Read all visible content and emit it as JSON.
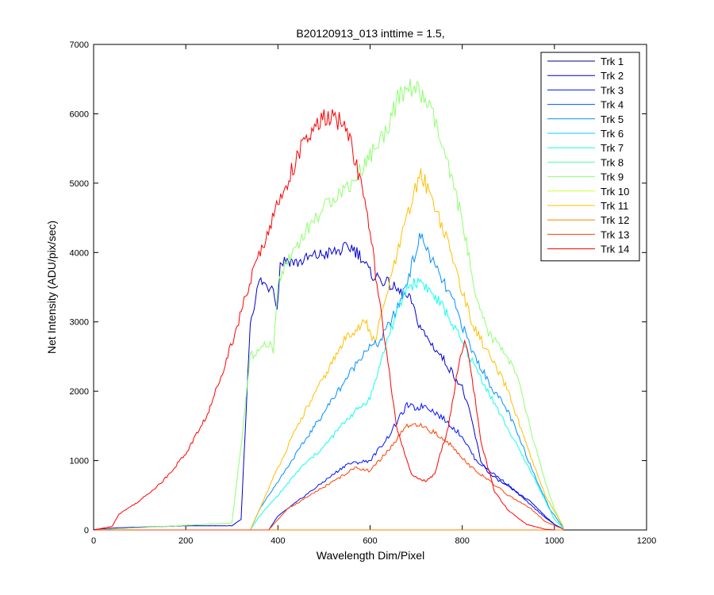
{
  "chart_data": {
    "type": "line",
    "title": "B20120913_013 inttime = 1.5,",
    "xlabel": "Wavelength Dim/Pixel",
    "ylabel": "Net Intensity (ADU/pix/sec)",
    "xlim": [
      0,
      1200
    ],
    "ylim": [
      0,
      7000
    ],
    "xticks": [
      0,
      200,
      400,
      600,
      800,
      1000,
      1200
    ],
    "yticks": [
      0,
      1000,
      2000,
      3000,
      4000,
      5000,
      6000,
      7000
    ],
    "grid": false,
    "legend_position": "top-right",
    "series": [
      {
        "name": "Trk 1",
        "color": "#00008f",
        "points": [
          [
            0,
            0
          ],
          [
            1020,
            0
          ]
        ]
      },
      {
        "name": "Trk 2",
        "color": "#0000cf",
        "points": [
          [
            0,
            5
          ],
          [
            50,
            30
          ],
          [
            100,
            40
          ],
          [
            200,
            60
          ],
          [
            300,
            60
          ],
          [
            320,
            150
          ],
          [
            340,
            3000
          ],
          [
            360,
            3600
          ],
          [
            380,
            3500
          ],
          [
            390,
            3550
          ],
          [
            398,
            3150
          ],
          [
            405,
            3850
          ],
          [
            420,
            3900
          ],
          [
            440,
            3850
          ],
          [
            480,
            3950
          ],
          [
            520,
            4000
          ],
          [
            560,
            4080
          ],
          [
            580,
            3950
          ],
          [
            600,
            3700
          ],
          [
            640,
            3550
          ],
          [
            670,
            3400
          ],
          [
            690,
            3300
          ],
          [
            700,
            3050
          ],
          [
            720,
            2800
          ],
          [
            760,
            2450
          ],
          [
            800,
            2050
          ],
          [
            820,
            1600
          ],
          [
            840,
            1000
          ],
          [
            860,
            800
          ],
          [
            900,
            620
          ],
          [
            950,
            400
          ],
          [
            980,
            200
          ],
          [
            1000,
            80
          ],
          [
            1020,
            10
          ]
        ]
      },
      {
        "name": "Trk 3",
        "color": "#0010ff",
        "points": [
          [
            0,
            0
          ],
          [
            380,
            0
          ],
          [
            400,
            200
          ],
          [
            450,
            450
          ],
          [
            500,
            700
          ],
          [
            550,
            950
          ],
          [
            600,
            1000
          ],
          [
            640,
            1350
          ],
          [
            680,
            1800
          ],
          [
            700,
            1750
          ],
          [
            720,
            1800
          ],
          [
            760,
            1600
          ],
          [
            800,
            1350
          ],
          [
            830,
            1000
          ],
          [
            850,
            900
          ],
          [
            900,
            650
          ],
          [
            950,
            350
          ],
          [
            980,
            180
          ],
          [
            1000,
            80
          ],
          [
            1020,
            10
          ]
        ]
      },
      {
        "name": "Trk 4",
        "color": "#0050ff",
        "points": [
          [
            0,
            0
          ],
          [
            1020,
            0
          ]
        ]
      },
      {
        "name": "Trk 5",
        "color": "#0090ff",
        "points": [
          [
            0,
            0
          ],
          [
            340,
            0
          ],
          [
            360,
            300
          ],
          [
            400,
            700
          ],
          [
            450,
            1200
          ],
          [
            500,
            1700
          ],
          [
            550,
            2200
          ],
          [
            590,
            2600
          ],
          [
            620,
            2700
          ],
          [
            660,
            3200
          ],
          [
            690,
            3800
          ],
          [
            710,
            4250
          ],
          [
            740,
            3800
          ],
          [
            780,
            3300
          ],
          [
            820,
            2600
          ],
          [
            860,
            2100
          ],
          [
            900,
            1700
          ],
          [
            950,
            900
          ],
          [
            990,
            300
          ],
          [
            1020,
            30
          ]
        ]
      },
      {
        "name": "Trk 6",
        "color": "#00d0ff",
        "points": [
          [
            0,
            0
          ],
          [
            1020,
            0
          ]
        ]
      },
      {
        "name": "Trk 7",
        "color": "#10ffef",
        "points": [
          [
            0,
            0
          ],
          [
            340,
            0
          ],
          [
            360,
            200
          ],
          [
            400,
            500
          ],
          [
            450,
            900
          ],
          [
            500,
            1200
          ],
          [
            550,
            1600
          ],
          [
            600,
            1900
          ],
          [
            640,
            2800
          ],
          [
            680,
            3500
          ],
          [
            710,
            3600
          ],
          [
            760,
            3200
          ],
          [
            800,
            2700
          ],
          [
            840,
            2200
          ],
          [
            880,
            1700
          ],
          [
            920,
            1200
          ],
          [
            960,
            700
          ],
          [
            1000,
            150
          ],
          [
            1020,
            20
          ]
        ]
      },
      {
        "name": "Trk 8",
        "color": "#50ffaf",
        "points": [
          [
            0,
            0
          ],
          [
            1020,
            0
          ]
        ]
      },
      {
        "name": "Trk 9",
        "color": "#8fff6f",
        "points": [
          [
            0,
            0
          ],
          [
            300,
            100
          ],
          [
            320,
            1200
          ],
          [
            340,
            2500
          ],
          [
            380,
            2700
          ],
          [
            390,
            2550
          ],
          [
            400,
            3600
          ],
          [
            430,
            4000
          ],
          [
            470,
            4400
          ],
          [
            520,
            4800
          ],
          [
            560,
            5000
          ],
          [
            580,
            5200
          ],
          [
            600,
            5400
          ],
          [
            630,
            5700
          ],
          [
            660,
            6200
          ],
          [
            690,
            6400
          ],
          [
            720,
            6200
          ],
          [
            740,
            5900
          ],
          [
            770,
            5200
          ],
          [
            800,
            4500
          ],
          [
            830,
            3300
          ],
          [
            860,
            2800
          ],
          [
            890,
            2600
          ],
          [
            920,
            2200
          ],
          [
            950,
            1400
          ],
          [
            980,
            700
          ],
          [
            1000,
            300
          ],
          [
            1020,
            30
          ]
        ]
      },
      {
        "name": "Trk 10",
        "color": "#cfff2f",
        "points": [
          [
            0,
            0
          ],
          [
            1020,
            0
          ]
        ]
      },
      {
        "name": "Trk 11",
        "color": "#ffbf00",
        "points": [
          [
            0,
            0
          ],
          [
            340,
            0
          ],
          [
            360,
            300
          ],
          [
            400,
            900
          ],
          [
            450,
            1600
          ],
          [
            500,
            2200
          ],
          [
            550,
            2800
          ],
          [
            590,
            3000
          ],
          [
            610,
            2700
          ],
          [
            640,
            3500
          ],
          [
            680,
            4500
          ],
          [
            710,
            5150
          ],
          [
            740,
            4700
          ],
          [
            780,
            3900
          ],
          [
            820,
            3000
          ],
          [
            860,
            2500
          ],
          [
            900,
            2000
          ],
          [
            940,
            1200
          ],
          [
            980,
            500
          ],
          [
            1020,
            40
          ]
        ]
      },
      {
        "name": "Trk 12",
        "color": "#ff8000",
        "points": [
          [
            0,
            0
          ],
          [
            1020,
            0
          ]
        ]
      },
      {
        "name": "Trk 13",
        "color": "#ff4000",
        "points": [
          [
            0,
            0
          ],
          [
            380,
            0
          ],
          [
            420,
            300
          ],
          [
            470,
            500
          ],
          [
            520,
            700
          ],
          [
            570,
            900
          ],
          [
            600,
            850
          ],
          [
            640,
            1150
          ],
          [
            680,
            1500
          ],
          [
            710,
            1500
          ],
          [
            740,
            1400
          ],
          [
            780,
            1200
          ],
          [
            820,
            900
          ],
          [
            850,
            750
          ],
          [
            900,
            500
          ],
          [
            950,
            300
          ],
          [
            980,
            120
          ],
          [
            1020,
            10
          ]
        ]
      },
      {
        "name": "Trk 14",
        "color": "#ff0000",
        "points": [
          [
            0,
            0
          ],
          [
            40,
            50
          ],
          [
            55,
            230
          ],
          [
            100,
            420
          ],
          [
            150,
            700
          ],
          [
            200,
            1100
          ],
          [
            250,
            1700
          ],
          [
            300,
            2700
          ],
          [
            350,
            3800
          ],
          [
            400,
            4700
          ],
          [
            450,
            5500
          ],
          [
            500,
            5950
          ],
          [
            530,
            5900
          ],
          [
            550,
            5800
          ],
          [
            580,
            5000
          ],
          [
            600,
            4300
          ],
          [
            630,
            2800
          ],
          [
            660,
            1400
          ],
          [
            690,
            800
          ],
          [
            720,
            700
          ],
          [
            740,
            800
          ],
          [
            770,
            1500
          ],
          [
            790,
            2300
          ],
          [
            805,
            2700
          ],
          [
            815,
            2500
          ],
          [
            840,
            1300
          ],
          [
            870,
            550
          ],
          [
            900,
            280
          ],
          [
            940,
            80
          ],
          [
            980,
            10
          ],
          [
            1000,
            0
          ]
        ]
      }
    ]
  }
}
